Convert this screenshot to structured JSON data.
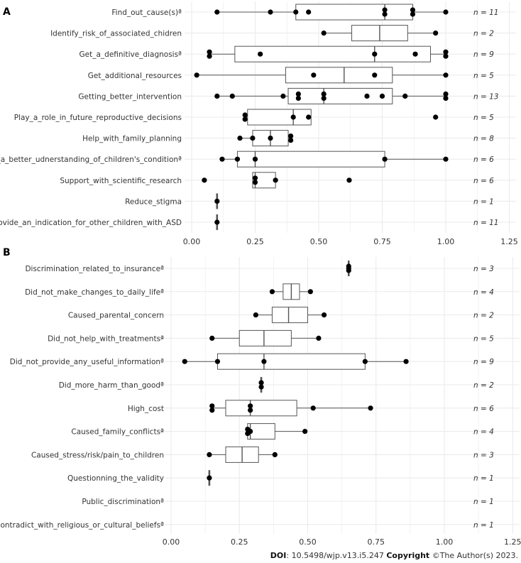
{
  "colors": {
    "grid": "#ebebeb",
    "box_stroke": "#555555",
    "whisker": "#555555",
    "point": "#000000",
    "text": "#333333"
  },
  "footer": {
    "doi_label": "DOI",
    "doi_value": ": 10.5498/wjp.v13.i5.247",
    "copyright_label": "Copyright",
    "copyright_value": " ©The Author(s) 2023."
  },
  "chart_data": [
    {
      "type": "boxplot",
      "panel_label": "A",
      "xlim": [
        0,
        1.25
      ],
      "ticks": [
        0,
        0.25,
        0.5,
        0.75,
        1.0,
        1.25
      ],
      "tick_labels": [
        "0.00",
        "0.25",
        "0.50",
        "0.75",
        "1.00",
        "1.25"
      ],
      "categories": [
        {
          "label": "Find_out_cause(s)ª",
          "n_label": "n = 11",
          "min": 0.1,
          "q1": 0.41,
          "median": 0.76,
          "q3": 0.87,
          "max": 1.0,
          "points": [
            0.1,
            0.31,
            0.41,
            0.46,
            0.76,
            0.76,
            0.87,
            0.87,
            1.0
          ]
        },
        {
          "label": "Identify_risk_of_associated_chidren",
          "n_label": "n = 2",
          "min": 0.52,
          "q1": 0.63,
          "median": 0.74,
          "q3": 0.85,
          "max": 0.96,
          "points": [
            0.52,
            0.96
          ]
        },
        {
          "label": "Get_a_definitive_diagnosisª",
          "n_label": "n = 9",
          "min": 0.07,
          "q1": 0.17,
          "median": 0.72,
          "q3": 0.94,
          "max": 1.0,
          "points": [
            0.07,
            0.07,
            0.27,
            0.72,
            0.88,
            1.0,
            1.0
          ]
        },
        {
          "label": "Get_additional_resources",
          "n_label": "n = 5",
          "min": 0.02,
          "q1": 0.37,
          "median": 0.6,
          "q3": 0.79,
          "max": 1.0,
          "points": [
            0.02,
            0.48,
            0.72,
            1.0
          ]
        },
        {
          "label": "Getting_better_intervention",
          "n_label": "n = 13",
          "min": 0.1,
          "q1": 0.38,
          "median": 0.52,
          "q3": 0.79,
          "max": 1.0,
          "points": [
            0.1,
            0.16,
            0.36,
            0.42,
            0.42,
            0.52,
            0.52,
            0.69,
            0.75,
            0.84,
            1.0,
            1.0
          ]
        },
        {
          "label": "Play_a_role_in_future_reproductive_decisions",
          "n_label": "n = 5",
          "min": 0.21,
          "q1": 0.22,
          "median": 0.4,
          "q3": 0.47,
          "max": 0.47,
          "points": [
            0.21,
            0.21,
            0.4,
            0.46,
            0.96
          ]
        },
        {
          "label": "Help_with_family_planning",
          "n_label": "n = 8",
          "min": 0.19,
          "q1": 0.24,
          "median": 0.31,
          "q3": 0.38,
          "max": 0.39,
          "points": [
            0.19,
            0.24,
            0.31,
            0.39,
            0.39
          ]
        },
        {
          "label": "Get_a_better_udnerstanding_of_children's_conditionª",
          "n_label": "n = 6",
          "min": 0.12,
          "q1": 0.18,
          "median": 0.25,
          "q3": 0.76,
          "max": 1.0,
          "points": [
            0.12,
            0.18,
            0.25,
            0.76,
            1.0
          ]
        },
        {
          "label": "Support_with_scientific_research",
          "n_label": "n = 6",
          "min": 0.24,
          "q1": 0.24,
          "median": 0.25,
          "q3": 0.33,
          "max": 0.33,
          "points": [
            0.05,
            0.25,
            0.25,
            0.33,
            0.62
          ]
        },
        {
          "label": "Reduce_stigma",
          "n_label": "n = 1",
          "min": 0.1,
          "q1": 0.1,
          "median": 0.1,
          "q3": 0.1,
          "max": 0.1,
          "points": [
            0.1
          ]
        },
        {
          "label": "Provide_an_indication_for_other_children_with_ASD",
          "n_label": "n = 11",
          "min": 0.1,
          "q1": 0.1,
          "median": 0.1,
          "q3": 0.1,
          "max": 0.1,
          "points": [
            0.1
          ]
        }
      ]
    },
    {
      "type": "boxplot",
      "panel_label": "B",
      "xlim": [
        0,
        1.25
      ],
      "ticks": [
        0,
        0.25,
        0.5,
        0.75,
        1.0,
        1.25
      ],
      "tick_labels": [
        "0.00",
        "0.25",
        "0.50",
        "0.75",
        "1.00",
        "1.25"
      ],
      "categories": [
        {
          "label": "Discrimination_related_to_insuranceª",
          "n_label": "n = 3",
          "min": 0.65,
          "q1": 0.65,
          "median": 0.65,
          "q3": 0.65,
          "max": 0.65,
          "points": [
            0.65,
            0.65,
            0.65
          ]
        },
        {
          "label": "Did_not_make_changes_to_daily_lifeª",
          "n_label": "n = 4",
          "min": 0.37,
          "q1": 0.41,
          "median": 0.44,
          "q3": 0.47,
          "max": 0.51,
          "points": [
            0.37,
            0.51
          ]
        },
        {
          "label": "Caused_parental_concern",
          "n_label": "n = 2",
          "min": 0.31,
          "q1": 0.37,
          "median": 0.43,
          "q3": 0.5,
          "max": 0.56,
          "points": [
            0.31,
            0.56
          ]
        },
        {
          "label": "Did_not_help_with_treatmentsª",
          "n_label": "n = 5",
          "min": 0.15,
          "q1": 0.25,
          "median": 0.34,
          "q3": 0.44,
          "max": 0.54,
          "points": [
            0.15,
            0.54
          ]
        },
        {
          "label": "Did_not_provide_any_useful_informationª",
          "n_label": "n = 9",
          "min": 0.05,
          "q1": 0.17,
          "median": 0.34,
          "q3": 0.71,
          "max": 0.86,
          "points": [
            0.05,
            0.17,
            0.34,
            0.71,
            0.86
          ]
        },
        {
          "label": "Did_more_harm_than_goodª",
          "n_label": "n = 2",
          "min": 0.33,
          "q1": 0.33,
          "median": 0.33,
          "q3": 0.33,
          "max": 0.33,
          "points": [
            0.33,
            0.33
          ]
        },
        {
          "label": "High_cost",
          "n_label": "n = 6",
          "min": 0.15,
          "q1": 0.2,
          "median": 0.29,
          "q3": 0.46,
          "max": 0.73,
          "points": [
            0.15,
            0.15,
            0.29,
            0.29,
            0.52,
            0.73
          ]
        },
        {
          "label": "Caused_family_conflictsª",
          "n_label": "n = 4",
          "min": 0.28,
          "q1": 0.28,
          "median": 0.29,
          "q3": 0.38,
          "max": 0.49,
          "points": [
            0.28,
            0.28,
            0.29,
            0.49
          ]
        },
        {
          "label": "Caused_stress/risk/pain_to_children",
          "n_label": "n = 3",
          "min": 0.14,
          "q1": 0.2,
          "median": 0.26,
          "q3": 0.32,
          "max": 0.38,
          "points": [
            0.14,
            0.38
          ]
        },
        {
          "label": "Questionning_the_validity",
          "n_label": "n = 1",
          "min": 0.14,
          "q1": 0.14,
          "median": 0.14,
          "q3": 0.14,
          "max": 0.14,
          "points": [
            0.14
          ]
        },
        {
          "label": "Public_discriminationª",
          "n_label": "n = 1",
          "min": null,
          "q1": null,
          "median": null,
          "q3": null,
          "max": null,
          "points": []
        },
        {
          "label": "Contradict_with_religious_or_cultural_beliefsª",
          "n_label": "n = 1",
          "min": null,
          "q1": null,
          "median": null,
          "q3": null,
          "max": null,
          "points": []
        }
      ]
    }
  ]
}
